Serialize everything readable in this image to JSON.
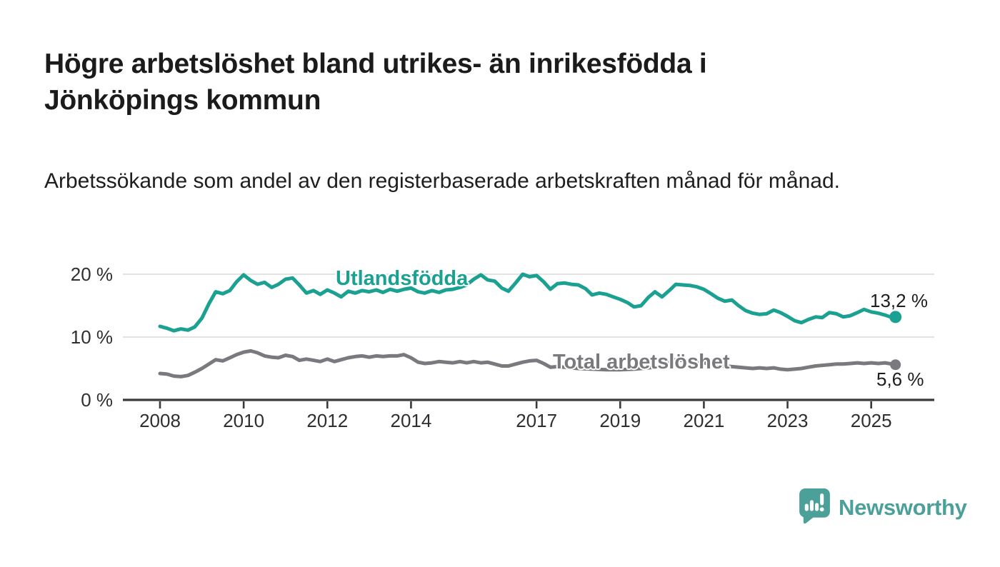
{
  "header": {
    "title": "Högre arbetslöshet bland utrikes- än inrikesfödda i Jönköpings kommun",
    "subtitle": "Arbetssökande som andel av den registerbaserade arbetskraften månad för månad."
  },
  "footer": {
    "brand": "Newsworthy"
  },
  "colors": {
    "series_foreign_born": "#1aa191",
    "series_total": "#7a7a7e",
    "logo_teal": "#4ba09a",
    "grid": "#dadada",
    "axis": "#3a3a3a",
    "text": "#1b1b1b"
  },
  "chart_data": {
    "type": "line",
    "title": "Högre arbetslöshet bland utrikes- än inrikesfödda i Jönköpings kommun",
    "subtitle": "Arbetssökande som andel av den registerbaserade arbetskraften månad för månad.",
    "xlabel": "",
    "ylabel": "",
    "grid": "horizontal",
    "legend_position": "inline-on-line",
    "x_unit": "year (monthly data)",
    "x_range": [
      2008.0,
      2025.58
    ],
    "ylim": [
      0,
      21.5
    ],
    "y_ticks": [
      {
        "value": 0,
        "label": "0 %"
      },
      {
        "value": 10,
        "label": "10 %"
      },
      {
        "value": 20,
        "label": "20 %"
      }
    ],
    "x_ticks": [
      {
        "value": 2008,
        "label": "2008"
      },
      {
        "value": 2010,
        "label": "2010"
      },
      {
        "value": 2012,
        "label": "2012"
      },
      {
        "value": 2014,
        "label": "2014"
      },
      {
        "value": 2017,
        "label": "2017"
      },
      {
        "value": 2019,
        "label": "2019"
      },
      {
        "value": 2021,
        "label": "2021"
      },
      {
        "value": 2023,
        "label": "2023"
      },
      {
        "value": 2025,
        "label": "2025"
      }
    ],
    "series": [
      {
        "key": "utlandsfodda",
        "name": "Utlandsfödda",
        "color": "#1aa191",
        "end_label": "13,2 %",
        "end_value": 13.2,
        "points": [
          [
            2008.0,
            11.7
          ],
          [
            2008.17,
            11.4
          ],
          [
            2008.33,
            11.0
          ],
          [
            2008.5,
            11.3
          ],
          [
            2008.67,
            11.1
          ],
          [
            2008.83,
            11.6
          ],
          [
            2009.0,
            13.0
          ],
          [
            2009.17,
            15.3
          ],
          [
            2009.33,
            17.2
          ],
          [
            2009.5,
            16.9
          ],
          [
            2009.67,
            17.4
          ],
          [
            2009.83,
            18.8
          ],
          [
            2010.0,
            19.9
          ],
          [
            2010.17,
            19.0
          ],
          [
            2010.33,
            18.4
          ],
          [
            2010.5,
            18.7
          ],
          [
            2010.67,
            17.9
          ],
          [
            2010.83,
            18.4
          ],
          [
            2011.0,
            19.2
          ],
          [
            2011.17,
            19.4
          ],
          [
            2011.33,
            18.3
          ],
          [
            2011.5,
            17.0
          ],
          [
            2011.67,
            17.4
          ],
          [
            2011.83,
            16.8
          ],
          [
            2012.0,
            17.5
          ],
          [
            2012.17,
            17.0
          ],
          [
            2012.33,
            16.4
          ],
          [
            2012.5,
            17.3
          ],
          [
            2012.67,
            17.0
          ],
          [
            2012.83,
            17.4
          ],
          [
            2013.0,
            17.2
          ],
          [
            2013.17,
            17.5
          ],
          [
            2013.33,
            17.1
          ],
          [
            2013.5,
            17.6
          ],
          [
            2013.67,
            17.3
          ],
          [
            2013.83,
            17.6
          ],
          [
            2014.0,
            17.8
          ],
          [
            2014.17,
            17.2
          ],
          [
            2014.33,
            17.0
          ],
          [
            2014.5,
            17.4
          ],
          [
            2014.67,
            17.1
          ],
          [
            2014.83,
            17.5
          ],
          [
            2015.0,
            17.6
          ],
          [
            2015.17,
            17.9
          ],
          [
            2015.33,
            18.3
          ],
          [
            2015.5,
            19.2
          ],
          [
            2015.67,
            19.9
          ],
          [
            2015.83,
            19.1
          ],
          [
            2016.0,
            18.9
          ],
          [
            2016.17,
            17.8
          ],
          [
            2016.33,
            17.3
          ],
          [
            2016.5,
            18.6
          ],
          [
            2016.67,
            20.0
          ],
          [
            2016.83,
            19.6
          ],
          [
            2017.0,
            19.8
          ],
          [
            2017.17,
            18.8
          ],
          [
            2017.33,
            17.6
          ],
          [
            2017.5,
            18.5
          ],
          [
            2017.67,
            18.6
          ],
          [
            2017.83,
            18.4
          ],
          [
            2018.0,
            18.3
          ],
          [
            2018.17,
            17.7
          ],
          [
            2018.33,
            16.7
          ],
          [
            2018.5,
            17.0
          ],
          [
            2018.67,
            16.8
          ],
          [
            2018.83,
            16.4
          ],
          [
            2019.0,
            16.0
          ],
          [
            2019.17,
            15.5
          ],
          [
            2019.33,
            14.8
          ],
          [
            2019.5,
            15.0
          ],
          [
            2019.67,
            16.3
          ],
          [
            2019.83,
            17.2
          ],
          [
            2020.0,
            16.4
          ],
          [
            2020.17,
            17.4
          ],
          [
            2020.33,
            18.4
          ],
          [
            2020.5,
            18.3
          ],
          [
            2020.67,
            18.2
          ],
          [
            2020.83,
            18.0
          ],
          [
            2021.0,
            17.6
          ],
          [
            2021.17,
            16.9
          ],
          [
            2021.33,
            16.2
          ],
          [
            2021.5,
            15.7
          ],
          [
            2021.67,
            15.9
          ],
          [
            2021.83,
            15.0
          ],
          [
            2022.0,
            14.2
          ],
          [
            2022.17,
            13.8
          ],
          [
            2022.33,
            13.6
          ],
          [
            2022.5,
            13.7
          ],
          [
            2022.67,
            14.3
          ],
          [
            2022.83,
            13.9
          ],
          [
            2023.0,
            13.3
          ],
          [
            2023.17,
            12.6
          ],
          [
            2023.33,
            12.3
          ],
          [
            2023.5,
            12.8
          ],
          [
            2023.67,
            13.2
          ],
          [
            2023.83,
            13.1
          ],
          [
            2024.0,
            13.9
          ],
          [
            2024.17,
            13.7
          ],
          [
            2024.33,
            13.2
          ],
          [
            2024.5,
            13.4
          ],
          [
            2024.67,
            13.9
          ],
          [
            2024.83,
            14.4
          ],
          [
            2025.0,
            14.0
          ],
          [
            2025.17,
            13.8
          ],
          [
            2025.33,
            13.5
          ],
          [
            2025.5,
            13.1
          ],
          [
            2025.58,
            13.2
          ]
        ]
      },
      {
        "key": "total-arbetsloshet",
        "name": "Total arbetslöshet",
        "color": "#7a7a7e",
        "end_label": "5,6 %",
        "end_value": 5.6,
        "points": [
          [
            2008.0,
            4.2
          ],
          [
            2008.17,
            4.1
          ],
          [
            2008.33,
            3.8
          ],
          [
            2008.5,
            3.7
          ],
          [
            2008.67,
            3.9
          ],
          [
            2008.83,
            4.4
          ],
          [
            2009.0,
            5.0
          ],
          [
            2009.17,
            5.7
          ],
          [
            2009.33,
            6.4
          ],
          [
            2009.5,
            6.2
          ],
          [
            2009.67,
            6.7
          ],
          [
            2009.83,
            7.2
          ],
          [
            2010.0,
            7.6
          ],
          [
            2010.17,
            7.8
          ],
          [
            2010.33,
            7.5
          ],
          [
            2010.5,
            7.0
          ],
          [
            2010.67,
            6.8
          ],
          [
            2010.83,
            6.7
          ],
          [
            2011.0,
            7.1
          ],
          [
            2011.17,
            6.9
          ],
          [
            2011.33,
            6.3
          ],
          [
            2011.5,
            6.5
          ],
          [
            2011.67,
            6.3
          ],
          [
            2011.83,
            6.1
          ],
          [
            2012.0,
            6.5
          ],
          [
            2012.17,
            6.1
          ],
          [
            2012.33,
            6.4
          ],
          [
            2012.5,
            6.7
          ],
          [
            2012.67,
            6.9
          ],
          [
            2012.83,
            7.0
          ],
          [
            2013.0,
            6.8
          ],
          [
            2013.17,
            7.0
          ],
          [
            2013.33,
            6.9
          ],
          [
            2013.5,
            7.0
          ],
          [
            2013.67,
            7.0
          ],
          [
            2013.83,
            7.2
          ],
          [
            2014.0,
            6.7
          ],
          [
            2014.17,
            6.0
          ],
          [
            2014.33,
            5.8
          ],
          [
            2014.5,
            5.9
          ],
          [
            2014.67,
            6.1
          ],
          [
            2014.83,
            6.0
          ],
          [
            2015.0,
            5.9
          ],
          [
            2015.17,
            6.1
          ],
          [
            2015.33,
            5.9
          ],
          [
            2015.5,
            6.1
          ],
          [
            2015.67,
            5.9
          ],
          [
            2015.83,
            6.0
          ],
          [
            2016.0,
            5.7
          ],
          [
            2016.17,
            5.4
          ],
          [
            2016.33,
            5.4
          ],
          [
            2016.5,
            5.7
          ],
          [
            2016.67,
            6.0
          ],
          [
            2016.83,
            6.2
          ],
          [
            2017.0,
            6.3
          ],
          [
            2017.17,
            5.8
          ],
          [
            2017.33,
            5.2
          ],
          [
            2017.5,
            5.3
          ],
          [
            2017.67,
            5.2
          ],
          [
            2017.83,
            5.1
          ],
          [
            2018.0,
            5.0
          ],
          [
            2018.33,
            4.9
          ],
          [
            2018.67,
            4.8
          ],
          [
            2019.0,
            4.8
          ],
          [
            2019.33,
            4.9
          ],
          [
            2019.67,
            5.1
          ],
          [
            2020.0,
            5.3
          ],
          [
            2020.25,
            6.4
          ],
          [
            2020.5,
            6.3
          ],
          [
            2020.75,
            6.1
          ],
          [
            2021.0,
            5.9
          ],
          [
            2021.33,
            5.5
          ],
          [
            2021.67,
            5.3
          ],
          [
            2022.0,
            5.1
          ],
          [
            2022.17,
            5.0
          ],
          [
            2022.33,
            5.1
          ],
          [
            2022.5,
            5.0
          ],
          [
            2022.67,
            5.1
          ],
          [
            2022.83,
            4.9
          ],
          [
            2023.0,
            4.8
          ],
          [
            2023.17,
            4.9
          ],
          [
            2023.33,
            5.0
          ],
          [
            2023.5,
            5.2
          ],
          [
            2023.67,
            5.4
          ],
          [
            2023.83,
            5.5
          ],
          [
            2024.0,
            5.6
          ],
          [
            2024.17,
            5.7
          ],
          [
            2024.33,
            5.7
          ],
          [
            2024.5,
            5.8
          ],
          [
            2024.67,
            5.9
          ],
          [
            2024.83,
            5.8
          ],
          [
            2025.0,
            5.9
          ],
          [
            2025.17,
            5.8
          ],
          [
            2025.33,
            5.9
          ],
          [
            2025.5,
            5.7
          ],
          [
            2025.58,
            5.6
          ]
        ]
      }
    ]
  }
}
